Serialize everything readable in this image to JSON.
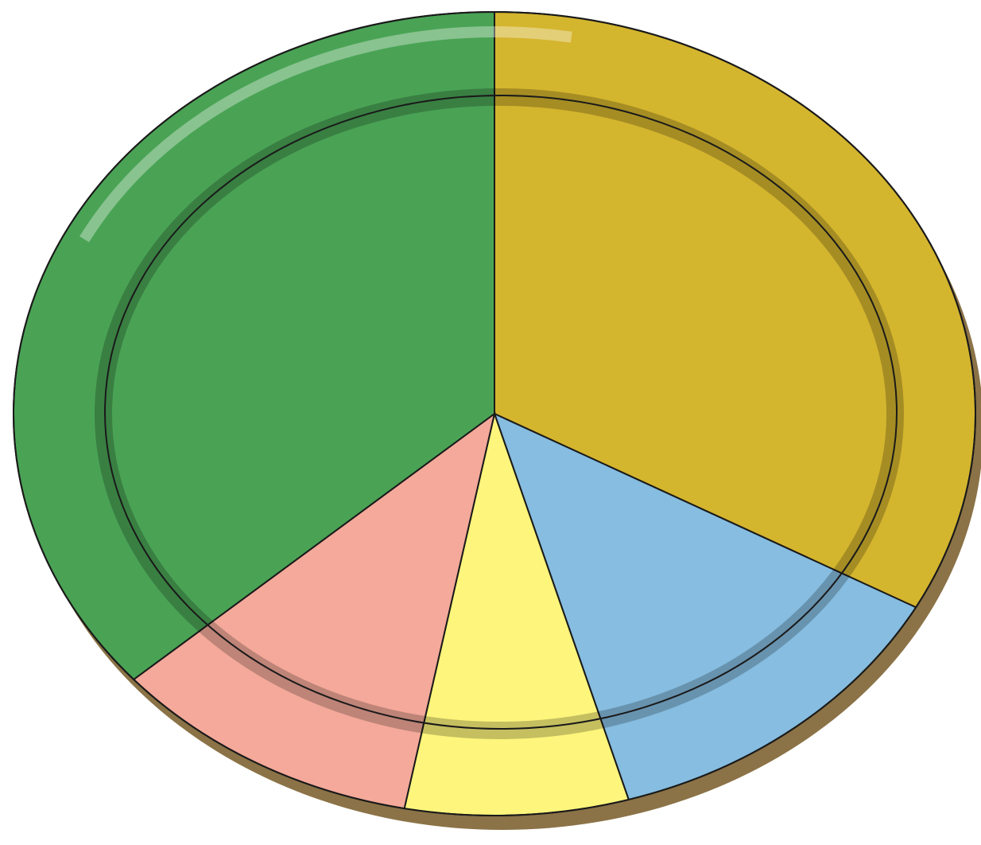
{
  "chart_data": {
    "type": "pie",
    "values": [
      33,
      12.5,
      7.5,
      10.5,
      36.5
    ],
    "colors": [
      "#d4b52e",
      "#86bde0",
      "#fdf57c",
      "#f4a99a",
      "#4aa355"
    ],
    "start_angle": 0,
    "direction": "clockwise"
  }
}
